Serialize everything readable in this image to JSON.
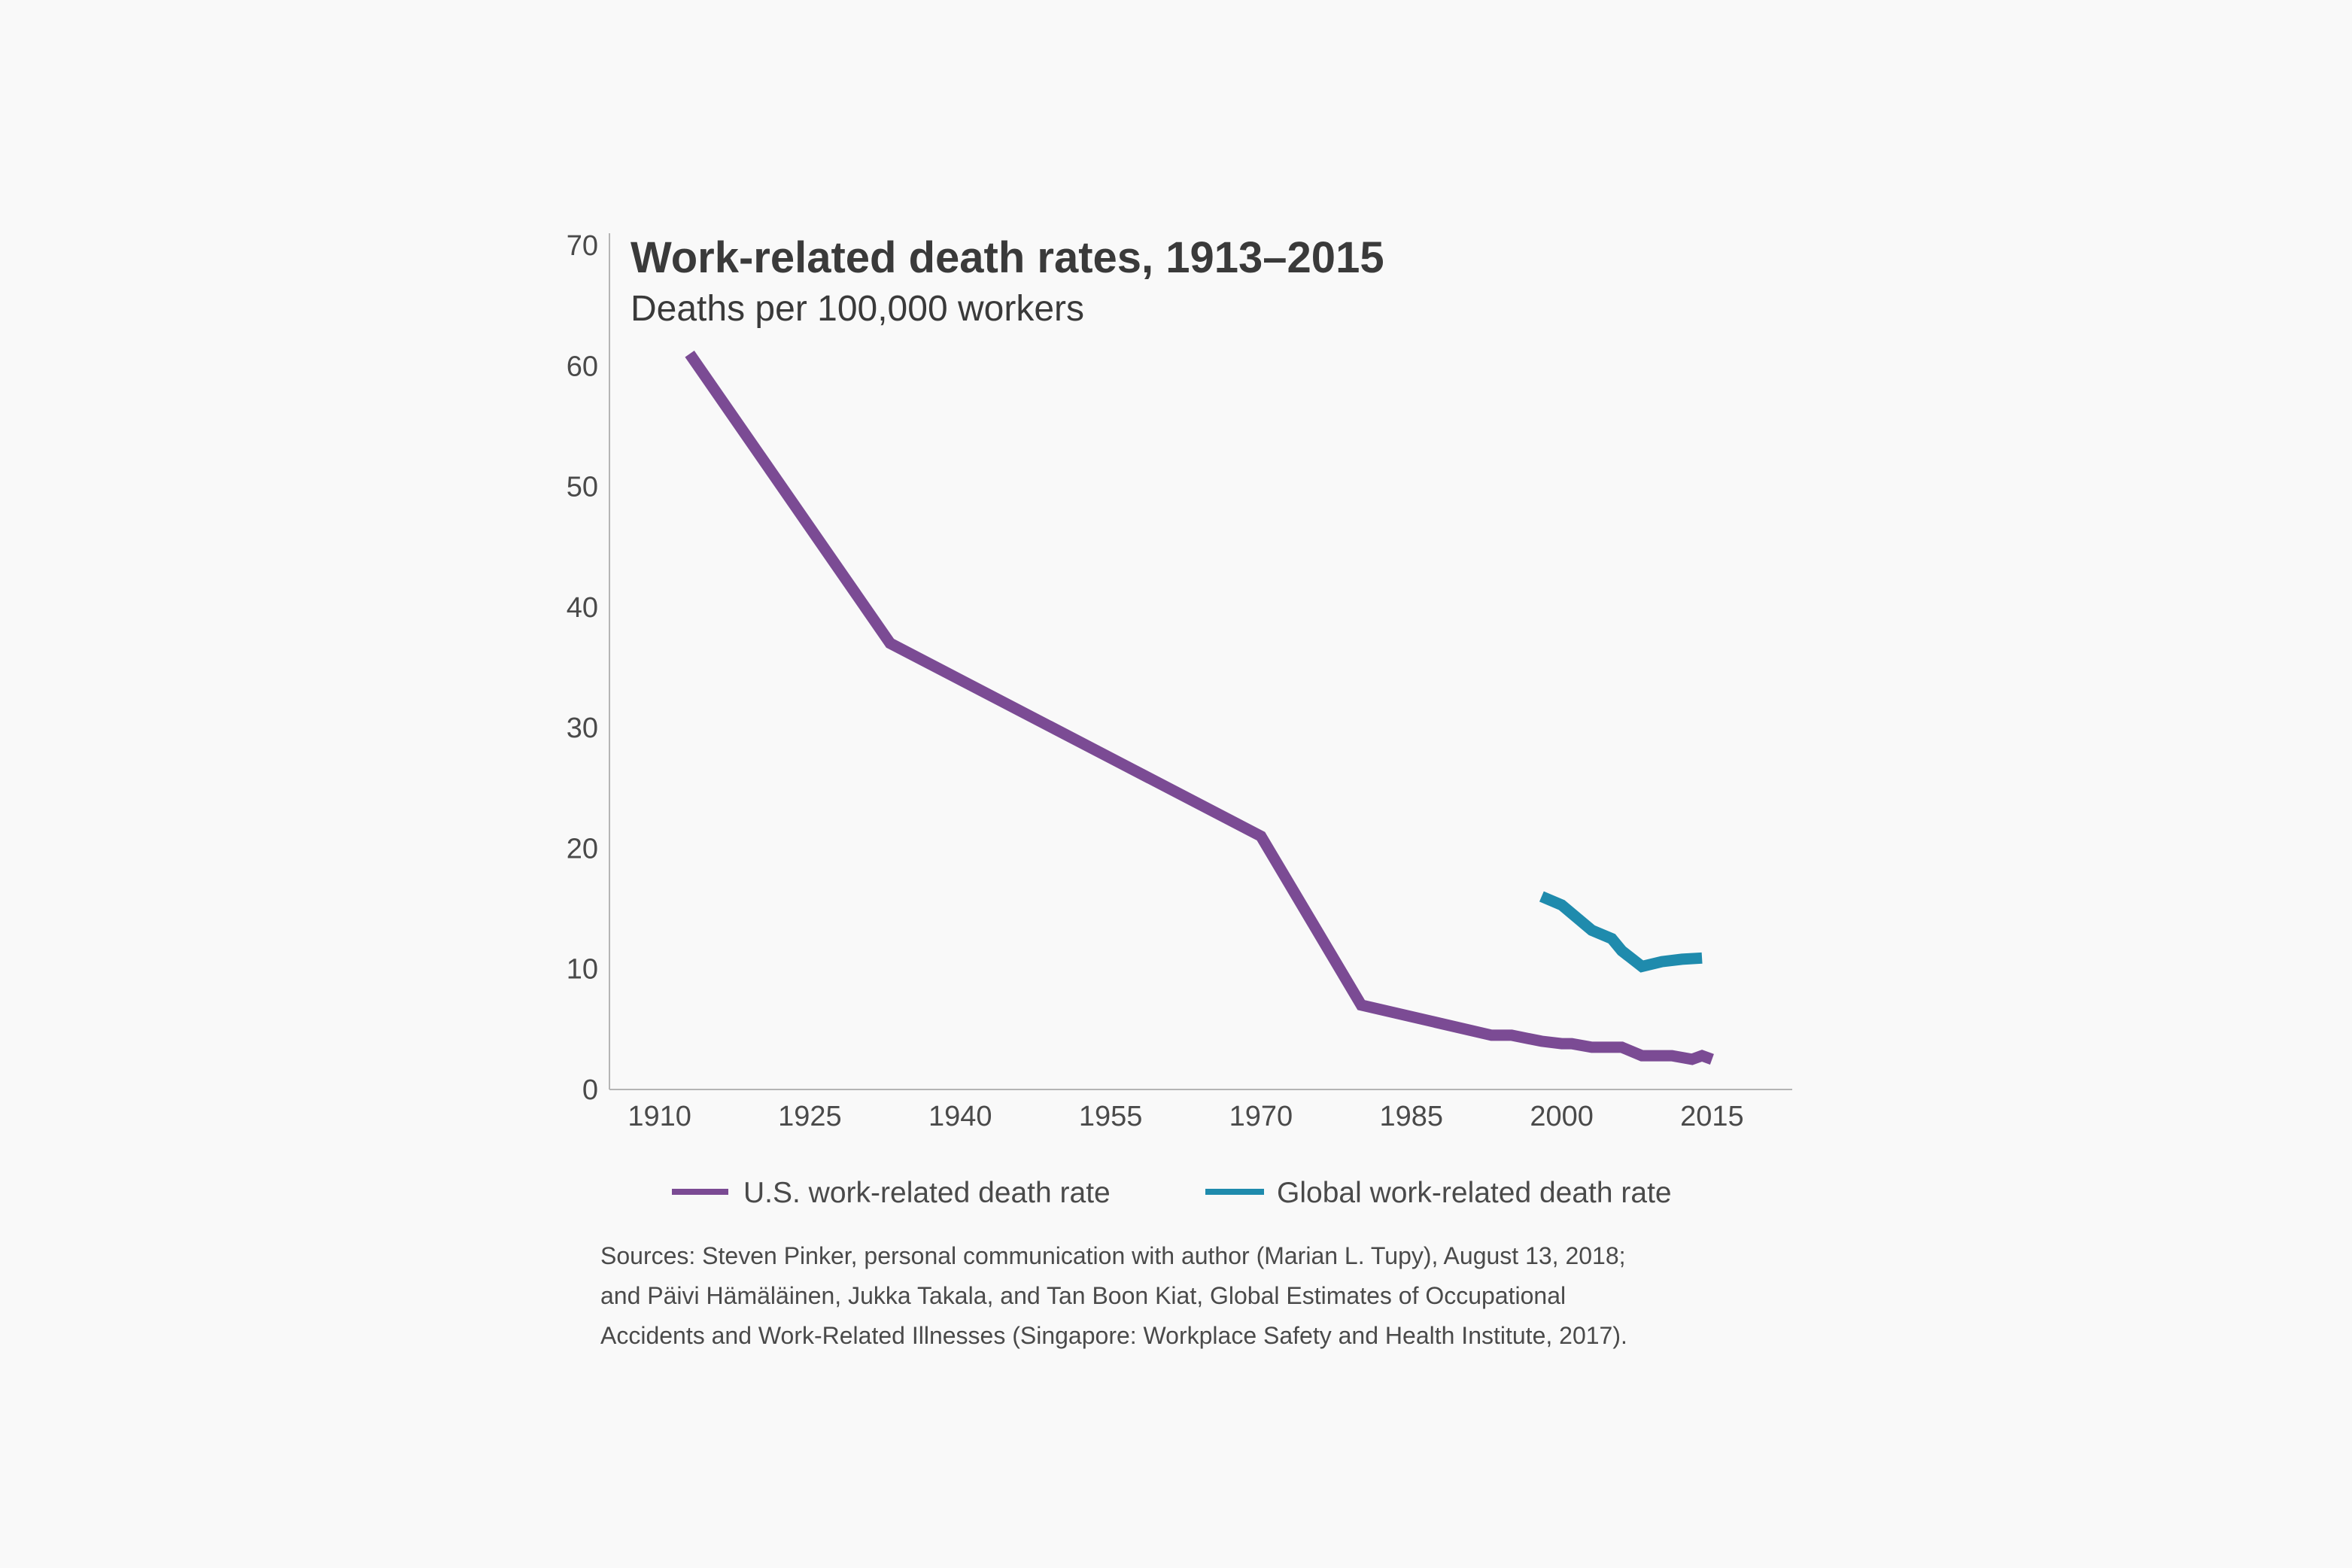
{
  "chart_data": {
    "type": "line",
    "title": "Work-related death rates, 1913–2015",
    "subtitle": "Deaths per 100,000 workers",
    "xlabel": "",
    "ylabel": "",
    "xlim": [
      1905,
      2023
    ],
    "ylim": [
      0,
      70
    ],
    "x_ticks": [
      1910,
      1925,
      1940,
      1955,
      1970,
      1985,
      2000,
      2015
    ],
    "y_ticks": [
      0,
      10,
      20,
      30,
      40,
      50,
      60,
      70
    ],
    "grid": false,
    "legend": "bottom",
    "series": [
      {
        "name": "U.S. work-related death rate",
        "color": "#7b4b94",
        "points": [
          [
            1913,
            61
          ],
          [
            1933,
            37
          ],
          [
            1970,
            21
          ],
          [
            1980,
            7
          ],
          [
            1993,
            4.5
          ],
          [
            1995,
            4.5
          ],
          [
            1998,
            4
          ],
          [
            2000,
            3.8
          ],
          [
            2001,
            3.8
          ],
          [
            2003,
            3.5
          ],
          [
            2006,
            3.5
          ],
          [
            2008,
            2.8
          ],
          [
            2011,
            2.8
          ],
          [
            2013,
            2.5
          ],
          [
            2014,
            2.8
          ],
          [
            2015,
            2.5
          ]
        ]
      },
      {
        "name": "Global work-related death rate",
        "color": "#1f8bad",
        "points": [
          [
            1998,
            16
          ],
          [
            2000,
            15.3
          ],
          [
            2003,
            13.2
          ],
          [
            2005,
            12.5
          ],
          [
            2006,
            11.5
          ],
          [
            2008,
            10.2
          ],
          [
            2010,
            10.6
          ],
          [
            2012,
            10.8
          ],
          [
            2014,
            10.9
          ]
        ]
      }
    ],
    "source": [
      "Sources: Steven Pinker, personal communication with author (Marian L. Tupy), August 13, 2018;",
      "and Päivi Hämäläinen, Jukka Takala, and Tan Boon Kiat, Global Estimates of Occupational",
      "Accidents and Work-Related Illnesses (Singapore: Workplace Safety and Health Institute, 2017)."
    ]
  }
}
